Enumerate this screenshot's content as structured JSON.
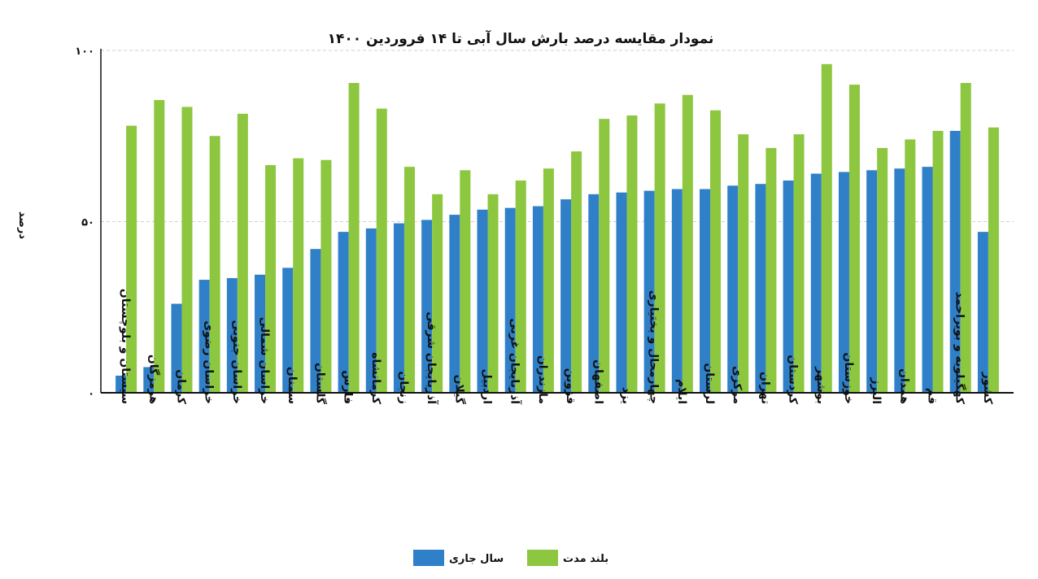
{
  "chart_data": {
    "type": "bar",
    "title": "نمودار مقایسه درصد بارش سال آبی تا ۱۴ فروردین ۱۴۰۰",
    "ylabel": "درصد",
    "xlabel": "",
    "ylim": [
      0,
      100
    ],
    "yticks": [
      {
        "value": 0,
        "label": "۰"
      },
      {
        "value": 50,
        "label": "۵۰"
      },
      {
        "value": 100,
        "label": "۱۰۰"
      }
    ],
    "grid": true,
    "legend_position": "bottom-center",
    "categories": [
      "سیستان و بلوچستان",
      "هرمزگان",
      "کرمان",
      "خراسان رضوی",
      "خراسان جنوبی",
      "خراسان شمالی",
      "سمنان",
      "گلستان",
      "فارس",
      "کرمانشاه",
      "زنجان",
      "آذربایجان شرقی",
      "گیلان",
      "اردبیل",
      "آذربایجان غربی",
      "مازندران",
      "قزوین",
      "اصفهان",
      "یزد",
      "چهارمحال و بختیاری",
      "ایلام",
      "لرستان",
      "مرکزی",
      "تهران",
      "کردستان",
      "بوشهر",
      "خوزستان",
      "البرز",
      "همدان",
      "قم",
      "کهگیلویه و بویراحمد",
      "کشور"
    ],
    "series": [
      {
        "name": "سال جاری",
        "color": "#2f80c8",
        "values": [
          5,
          7.5,
          26,
          33,
          33.5,
          34.5,
          36.5,
          42,
          47,
          48,
          49.5,
          50.5,
          52,
          53.5,
          54,
          54.5,
          56.5,
          58,
          58.5,
          59,
          59.5,
          59.5,
          60.5,
          61,
          62,
          64,
          64.5,
          65,
          65.5,
          66,
          76.5,
          47
        ]
      },
      {
        "name": "بلند مدت",
        "color": "#8dc63f",
        "values": [
          78,
          85.5,
          83.5,
          75,
          81.5,
          66.5,
          68.5,
          68,
          90.5,
          83,
          66,
          58,
          65,
          58,
          62,
          65.5,
          70.5,
          80,
          81,
          84.5,
          87,
          82.5,
          75.5,
          71.5,
          75.5,
          96,
          90,
          71.5,
          74,
          76.5,
          90.5,
          77.5
        ]
      }
    ]
  }
}
